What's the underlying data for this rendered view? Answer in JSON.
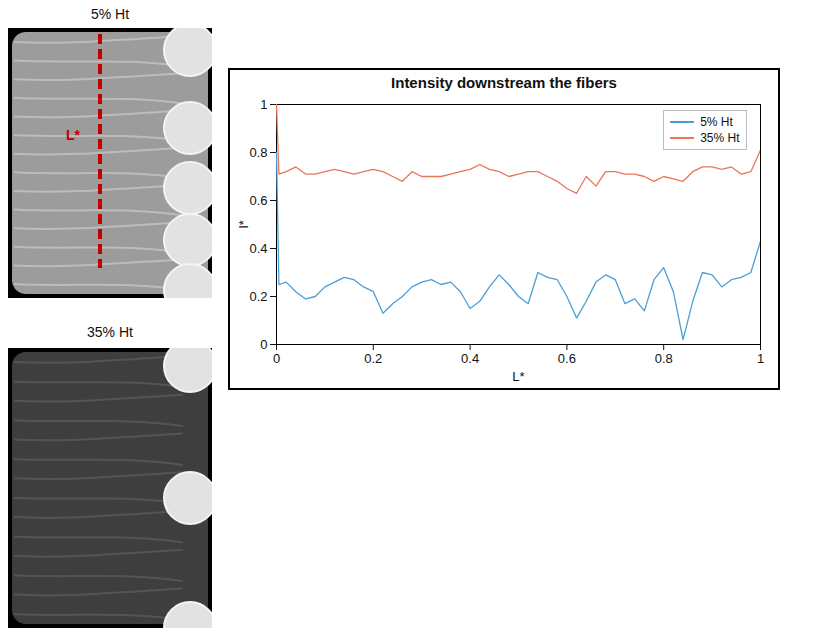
{
  "chart_data": {
    "type": "line",
    "title": "Intensity downstream the fibers",
    "x_label": "L*",
    "y_label": "I*",
    "x": [
      0,
      0.005,
      0.02,
      0.04,
      0.06,
      0.08,
      0.1,
      0.12,
      0.14,
      0.16,
      0.18,
      0.2,
      0.22,
      0.24,
      0.26,
      0.28,
      0.3,
      0.32,
      0.34,
      0.36,
      0.38,
      0.4,
      0.42,
      0.44,
      0.46,
      0.48,
      0.5,
      0.52,
      0.54,
      0.56,
      0.58,
      0.6,
      0.62,
      0.64,
      0.66,
      0.68,
      0.7,
      0.72,
      0.74,
      0.76,
      0.78,
      0.8,
      0.82,
      0.84,
      0.86,
      0.88,
      0.9,
      0.92,
      0.94,
      0.96,
      0.98,
      1
    ],
    "series": [
      {
        "name": "5% Ht",
        "color": "#4a9fd8",
        "values": [
          0.8,
          0.25,
          0.26,
          0.22,
          0.19,
          0.2,
          0.24,
          0.26,
          0.28,
          0.27,
          0.24,
          0.22,
          0.13,
          0.17,
          0.2,
          0.24,
          0.26,
          0.27,
          0.25,
          0.26,
          0.22,
          0.15,
          0.18,
          0.24,
          0.29,
          0.25,
          0.2,
          0.17,
          0.3,
          0.28,
          0.27,
          0.2,
          0.11,
          0.18,
          0.26,
          0.29,
          0.27,
          0.17,
          0.19,
          0.14,
          0.27,
          0.32,
          0.22,
          0.02,
          0.18,
          0.3,
          0.29,
          0.24,
          0.27,
          0.28,
          0.3,
          0.43
        ]
      },
      {
        "name": "35% Ht",
        "color": "#e8775a",
        "values": [
          1.0,
          0.71,
          0.72,
          0.74,
          0.71,
          0.71,
          0.72,
          0.73,
          0.72,
          0.71,
          0.72,
          0.73,
          0.72,
          0.7,
          0.68,
          0.72,
          0.7,
          0.7,
          0.7,
          0.71,
          0.72,
          0.73,
          0.75,
          0.73,
          0.72,
          0.7,
          0.71,
          0.72,
          0.72,
          0.7,
          0.68,
          0.65,
          0.63,
          0.7,
          0.66,
          0.72,
          0.72,
          0.71,
          0.71,
          0.7,
          0.68,
          0.7,
          0.69,
          0.68,
          0.72,
          0.74,
          0.74,
          0.73,
          0.74,
          0.71,
          0.72,
          0.81
        ]
      }
    ],
    "xlim": [
      0,
      1
    ],
    "xticks": [
      0,
      0.2,
      0.4,
      0.6,
      0.8,
      1
    ],
    "ylim": [
      0,
      1
    ],
    "yticks": [
      0,
      0.2,
      0.4,
      0.6,
      0.8,
      1
    ],
    "grid": false,
    "legend": "upper right"
  },
  "images": [
    {
      "title": "5% Ht",
      "annotation": "L*"
    },
    {
      "title": "35% Ht"
    }
  ]
}
